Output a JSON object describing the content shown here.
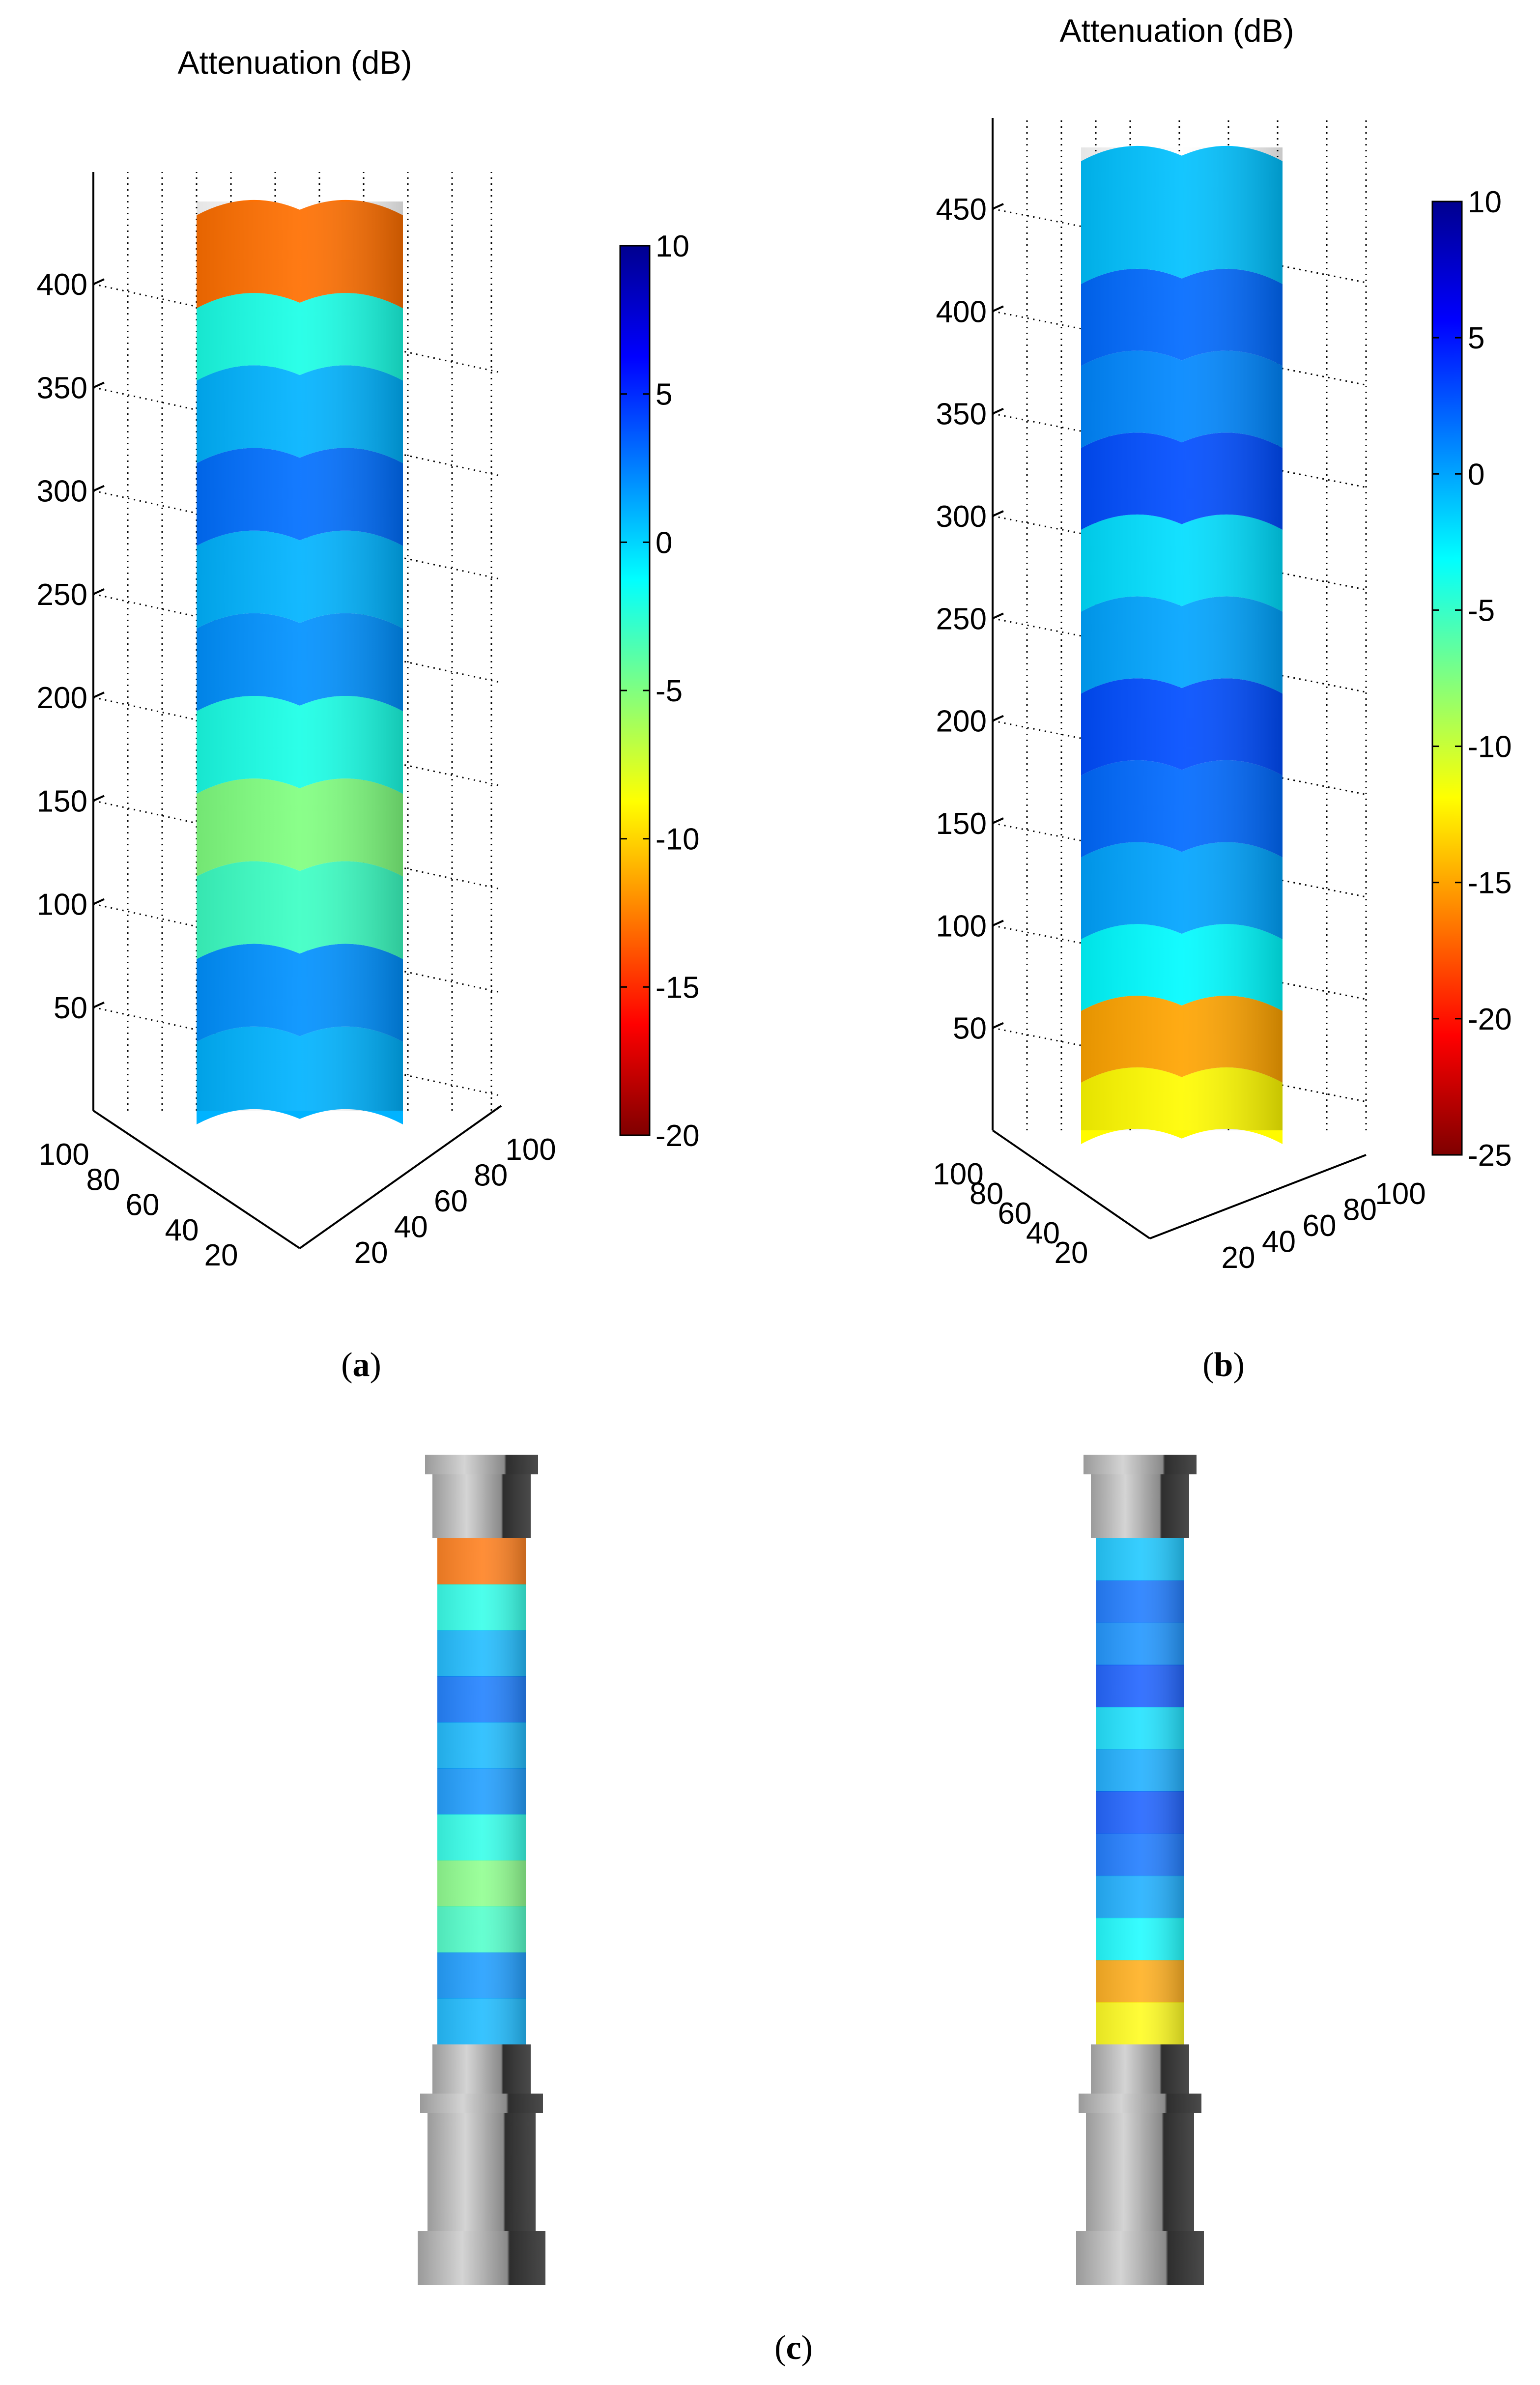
{
  "colors": {
    "colormap": [
      "#7f0000",
      "#ff0000",
      "#ff8000",
      "#ffff00",
      "#80ff80",
      "#00ffff",
      "#0080ff",
      "#0000ff",
      "#00008f"
    ],
    "background": "#ffffff",
    "stone_light": "#bdbdbd",
    "stone_dark": "#3a3a3a"
  },
  "captions": {
    "a": "a",
    "b": "b",
    "c": "c"
  },
  "chart_data": [
    {
      "type": "3d-volume",
      "panel": "a",
      "title": "Attenuation (dB)",
      "xlabel": "",
      "ylabel": "",
      "zlabel": "",
      "z_ticks": [
        50,
        100,
        150,
        200,
        250,
        300,
        350,
        400
      ],
      "x_ticks": [
        20,
        40,
        60,
        80,
        100
      ],
      "y_ticks": [
        100,
        80,
        60,
        40,
        20
      ],
      "colorbar": {
        "ticks": [
          10,
          5,
          0,
          -5,
          -10,
          -15,
          -20
        ],
        "clim": [
          -20,
          10
        ]
      },
      "zlim": [
        0,
        440
      ],
      "grid": true,
      "bands": [
        {
          "z0": 0,
          "z1": 40,
          "value": 1
        },
        {
          "z0": 40,
          "z1": 80,
          "value": 2
        },
        {
          "z0": 80,
          "z1": 120,
          "value": -3
        },
        {
          "z0": 120,
          "z1": 160,
          "value": -5
        },
        {
          "z0": 160,
          "z1": 200,
          "value": -2
        },
        {
          "z0": 200,
          "z1": 240,
          "value": 2
        },
        {
          "z0": 240,
          "z1": 280,
          "value": 1
        },
        {
          "z0": 280,
          "z1": 320,
          "value": 3
        },
        {
          "z0": 320,
          "z1": 360,
          "value": 1
        },
        {
          "z0": 360,
          "z1": 395,
          "value": -2
        },
        {
          "z0": 395,
          "z1": 440,
          "value": -13
        }
      ]
    },
    {
      "type": "3d-volume",
      "panel": "b",
      "title": "Attenuation (dB)",
      "xlabel": "",
      "ylabel": "",
      "zlabel": "",
      "z_ticks": [
        50,
        100,
        150,
        200,
        250,
        300,
        350,
        400,
        450
      ],
      "x_ticks": [
        20,
        40,
        60,
        80,
        100
      ],
      "y_ticks": [
        100,
        80,
        60,
        40,
        20
      ],
      "colorbar": {
        "ticks": [
          10,
          5,
          0,
          -5,
          -10,
          -15,
          -20,
          -25
        ],
        "clim": [
          -25,
          10
        ]
      },
      "zlim": [
        0,
        480
      ],
      "grid": true,
      "bands": [
        {
          "z0": 0,
          "z1": 30,
          "value": -12
        },
        {
          "z0": 30,
          "z1": 65,
          "value": -15
        },
        {
          "z0": 65,
          "z1": 100,
          "value": -3
        },
        {
          "z0": 100,
          "z1": 140,
          "value": 0
        },
        {
          "z0": 140,
          "z1": 180,
          "value": 2
        },
        {
          "z0": 180,
          "z1": 220,
          "value": 3
        },
        {
          "z0": 220,
          "z1": 260,
          "value": 0
        },
        {
          "z0": 260,
          "z1": 300,
          "value": -2
        },
        {
          "z0": 300,
          "z1": 340,
          "value": 3
        },
        {
          "z0": 340,
          "z1": 380,
          "value": 1
        },
        {
          "z0": 380,
          "z1": 420,
          "value": 2
        },
        {
          "z0": 420,
          "z1": 480,
          "value": -1
        }
      ]
    }
  ]
}
